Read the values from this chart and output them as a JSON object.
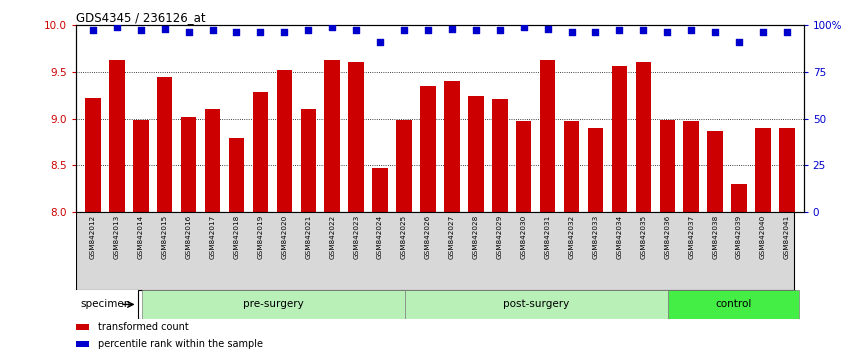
{
  "title": "GDS4345 / 236126_at",
  "samples": [
    "GSM842012",
    "GSM842013",
    "GSM842014",
    "GSM842015",
    "GSM842016",
    "GSM842017",
    "GSM842018",
    "GSM842019",
    "GSM842020",
    "GSM842021",
    "GSM842022",
    "GSM842023",
    "GSM842024",
    "GSM842025",
    "GSM842026",
    "GSM842027",
    "GSM842028",
    "GSM842029",
    "GSM842030",
    "GSM842031",
    "GSM842032",
    "GSM842033",
    "GSM842034",
    "GSM842035",
    "GSM842036",
    "GSM842037",
    "GSM842038",
    "GSM842039",
    "GSM842040",
    "GSM842041"
  ],
  "transformed_count": [
    9.22,
    9.62,
    8.98,
    9.44,
    9.02,
    9.1,
    8.79,
    9.28,
    9.52,
    9.1,
    9.62,
    9.6,
    8.47,
    8.98,
    9.35,
    9.4,
    9.24,
    9.21,
    8.97,
    9.62,
    8.97,
    8.9,
    9.56,
    9.6,
    8.98,
    8.97,
    8.87,
    8.3,
    8.9,
    8.9
  ],
  "percentile_rank": [
    97,
    99,
    97,
    98,
    96,
    97,
    96,
    96,
    96,
    97,
    99,
    97,
    91,
    97,
    97,
    98,
    97,
    97,
    99,
    98,
    96,
    96,
    97,
    97,
    96,
    97,
    96,
    91,
    96,
    96
  ],
  "groups": [
    {
      "label": "pre-surgery",
      "start": 0,
      "end": 12,
      "color": "#b8f0b8"
    },
    {
      "label": "post-surgery",
      "start": 12,
      "end": 24,
      "color": "#b8f0b8"
    },
    {
      "label": "control",
      "start": 24,
      "end": 30,
      "color": "#44ee44"
    }
  ],
  "bar_color": "#cc0000",
  "dot_color": "#0000cc",
  "ylim_left": [
    8.0,
    10.0
  ],
  "yticks_left": [
    8.0,
    8.5,
    9.0,
    9.5,
    10.0
  ],
  "yticks_right": [
    0,
    25,
    50,
    75,
    100
  ],
  "ytick_labels_right": [
    "0",
    "25",
    "50",
    "75",
    "100%"
  ],
  "grid_values": [
    8.5,
    9.0,
    9.5
  ],
  "specimen_label": "specimen",
  "legend": [
    {
      "color": "#cc0000",
      "label": "transformed count"
    },
    {
      "color": "#0000cc",
      "label": "percentile rank within the sample"
    }
  ]
}
